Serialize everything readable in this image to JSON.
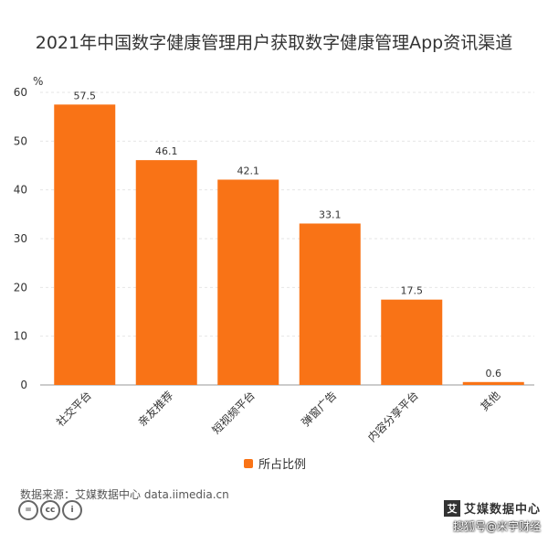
{
  "chart_data": {
    "type": "bar",
    "title": "2021年中国数字健康管理用户获取数字健康管理App资讯渠道",
    "ylabel": "%",
    "ylim": [
      0,
      60
    ],
    "yticks": [
      0,
      10,
      20,
      30,
      40,
      50,
      60
    ],
    "categories": [
      "社交平台",
      "亲友推荐",
      "短视频平台",
      "弹窗广告",
      "内容分享平台",
      "其他"
    ],
    "series": [
      {
        "name": "所占比例",
        "values": [
          57.5,
          46.1,
          42.1,
          33.1,
          17.5,
          0.6
        ]
      }
    ],
    "grid": true,
    "legend": "bottom",
    "color": "#F97316"
  },
  "source": "数据来源：艾媒数据中心 data.iimedia.cn",
  "cc_icons": [
    "=",
    "cc",
    "i"
  ],
  "brand": {
    "logo": "艾",
    "name": "艾媒数据中心",
    "sub": "搜狐号@米宇财经"
  }
}
